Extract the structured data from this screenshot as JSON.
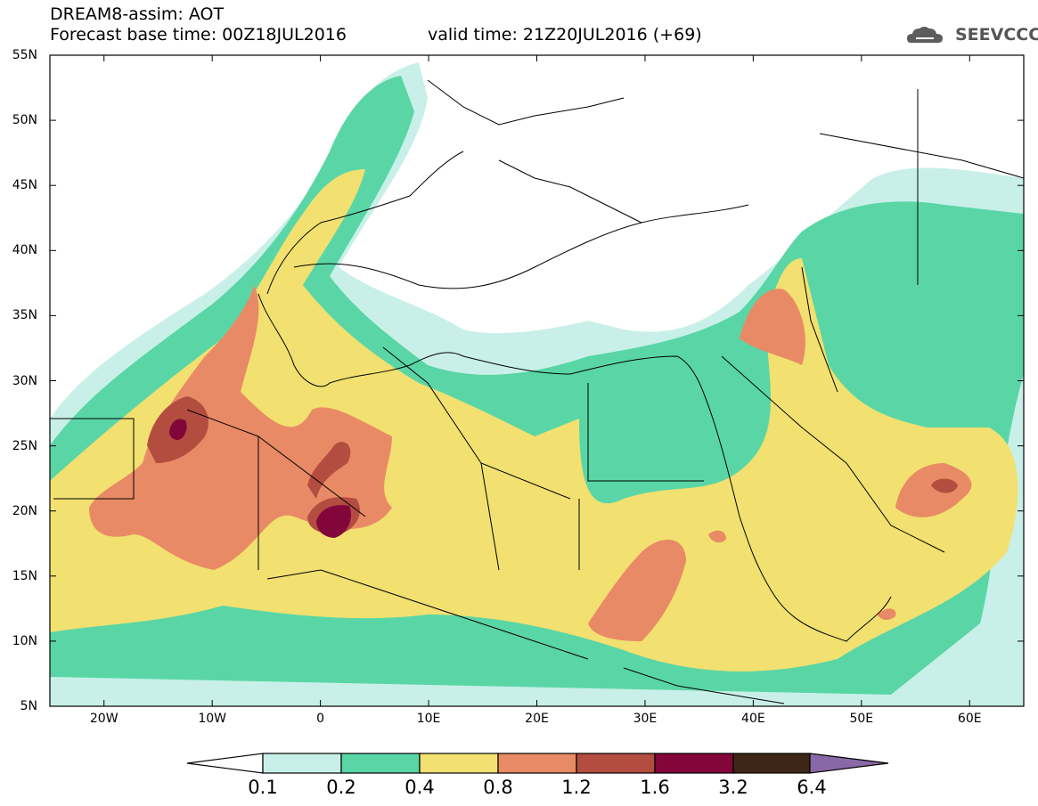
{
  "header": {
    "title": "DREAM8-assim: AOT",
    "base_time": "Forecast base time: 00Z18JUL2016",
    "valid_time": "valid time: 21Z20JUL2016 (+69)"
  },
  "logo": {
    "text": "SEEVCCC",
    "icon": "cloud-icon"
  },
  "map": {
    "lon_range": [
      -25,
      65
    ],
    "lat_range": [
      5,
      55
    ],
    "lat_labels": [
      "55N",
      "50N",
      "45N",
      "40N",
      "35N",
      "30N",
      "25N",
      "20N",
      "15N",
      "10N",
      "5N"
    ],
    "lon_labels": [
      "20W",
      "10W",
      "0",
      "10E",
      "20E",
      "30E",
      "40E",
      "50E",
      "60E"
    ]
  },
  "colorbar": {
    "labels": [
      "0.1",
      "0.2",
      "0.4",
      "0.8",
      "1.2",
      "1.6",
      "3.2",
      "6.4"
    ],
    "colors": [
      "#ffffff",
      "#c8f0e8",
      "#5ad6a6",
      "#f2e070",
      "#e98a66",
      "#b24d3f",
      "#83063a",
      "#3e2616",
      "#8a68a8"
    ]
  }
}
